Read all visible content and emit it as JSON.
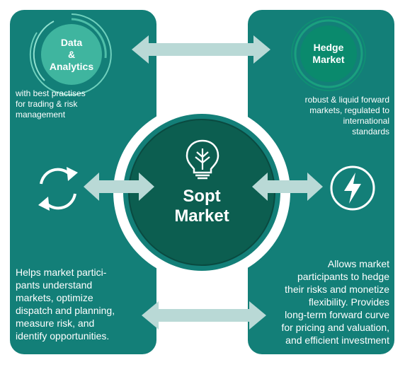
{
  "center": {
    "line1": "Sopt",
    "line2": "Market"
  },
  "data_bubble": {
    "line1": "Data",
    "line2": "&",
    "line3": "Analytics"
  },
  "hedge_bubble": {
    "line1": "Hedge",
    "line2": "Market"
  },
  "left_top_text": [
    "with best practises",
    "for trading & risk",
    "management"
  ],
  "right_top_text": [
    "robust & liquid forward",
    "markets, regulated to",
    "international",
    "standards"
  ],
  "left_bottom_text": [
    "Helps market partici-",
    "pants understand",
    "markets, optimize",
    "dispatch and planning,",
    "measure risk, and",
    "identify opportunities."
  ],
  "right_bottom_text": [
    "Allows market",
    "participants to hedge",
    "their risks and monetize",
    "flexibility. Provides",
    "long-term forward curve",
    "for pricing and valuation,",
    "and efficient investment"
  ],
  "icons": [
    "sync-icon",
    "lightning-icon",
    "lightbulb-plant-icon"
  ],
  "colors": {
    "panel": "#137f78",
    "center": "#0c5e50",
    "arrow": "#b9d9d6",
    "data_bubble": "#3fb59f",
    "hedge_bubble": "#0a8a6d"
  }
}
